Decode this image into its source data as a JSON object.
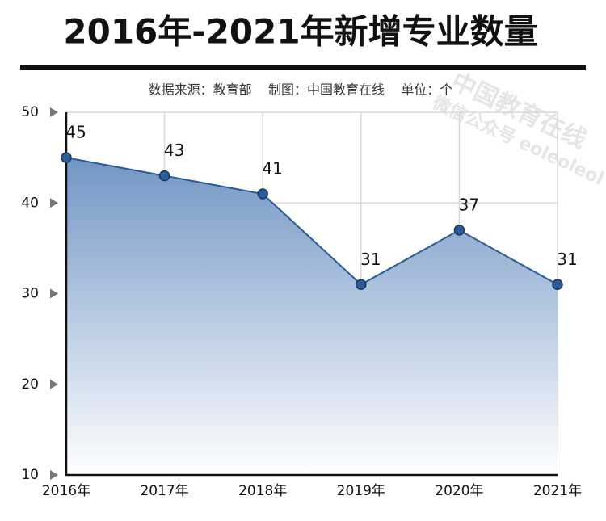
{
  "chart_data": {
    "type": "line",
    "title": "2016年-2021年新增专业数量",
    "subtitle": "数据来源：教育部    制图：中国教育在线    单位：个",
    "watermark": [
      "中国教育在线",
      "微信公众号 eoleoleol"
    ],
    "categories": [
      "2016年",
      "2017年",
      "2018年",
      "2019年",
      "2020年",
      "2021年"
    ],
    "values": [
      45,
      43,
      41,
      31,
      37,
      31
    ],
    "color": "#2b5b95",
    "area": true,
    "ylim": [
      10,
      50
    ],
    "yticks": [
      10,
      20,
      30,
      40,
      50
    ],
    "grid": true
  }
}
